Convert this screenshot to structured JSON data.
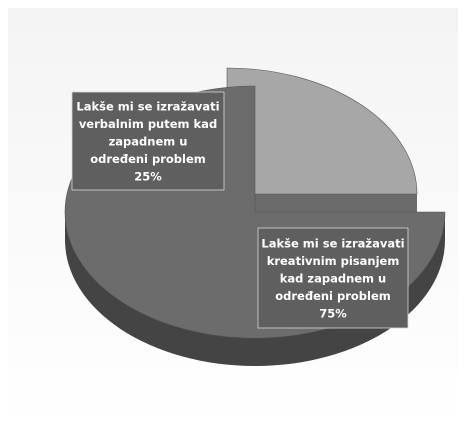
{
  "chart_data": {
    "type": "pie",
    "title": "",
    "slices": [
      {
        "label_lines": [
          "Lakše mi se izražavati",
          "verbalnim putem kad",
          "zapadnem u",
          "određeni problem"
        ],
        "value": 25,
        "value_label": "25%",
        "color": "#a7a7a7",
        "side_color": "#6b6b6b",
        "exploded": true
      },
      {
        "label_lines": [
          "Lakše mi se izražavati",
          "kreativnim pisanjem",
          "kad zapadnem u",
          "određeni problem"
        ],
        "value": 75,
        "value_label": "75%",
        "color": "#6c6c6c",
        "side_color": "#444444",
        "exploded": false
      }
    ],
    "style": "3d-tilted",
    "legend": "none",
    "label_box_color": "#5f5f5f"
  }
}
